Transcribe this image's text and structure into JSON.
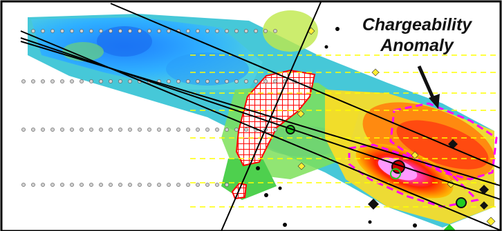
{
  "map": {
    "annotation": {
      "line1": "Chargeability",
      "line2": "Anomaly"
    },
    "colors": {
      "frame": "#000000",
      "survey_line": "#000000",
      "yellow_dash": "#ffff00",
      "magenta_outline": "#ff00ff",
      "grid_target": "#ff0000",
      "station_dot": "#a0a0a0",
      "diamond_yellow": "#ffee33",
      "diamond_black": "#111111",
      "diamond_green": "#22cc22",
      "anomaly_core": "#ff80ff",
      "anomaly_high": "#ff2200",
      "anomaly_mid": "#ff8800",
      "background_low": "#1e90ff",
      "background_mid": "#3ccf3c"
    },
    "legend_icons": [
      "arrow-icon"
    ]
  }
}
